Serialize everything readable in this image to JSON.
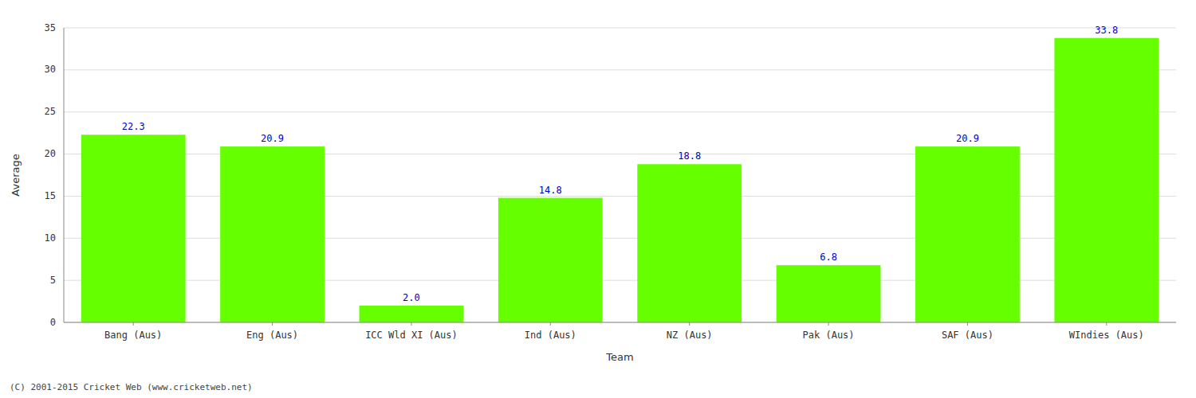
{
  "chart_data": {
    "type": "bar",
    "categories": [
      "Bang (Aus)",
      "Eng (Aus)",
      "ICC Wld XI (Aus)",
      "Ind (Aus)",
      "NZ (Aus)",
      "Pak (Aus)",
      "SAF (Aus)",
      "WIndies (Aus)"
    ],
    "values": [
      22.3,
      20.9,
      2.0,
      14.8,
      18.8,
      6.8,
      20.9,
      33.8
    ],
    "value_labels": [
      "22.3",
      "20.9",
      "2.0",
      "14.8",
      "18.8",
      "6.8",
      "20.9",
      "33.8"
    ],
    "color": "#66ff00",
    "xlabel": "Team",
    "ylabel": "Average",
    "ylim": [
      0,
      35
    ],
    "yticks": [
      0,
      5,
      10,
      15,
      20,
      25,
      30,
      35
    ],
    "grid": true,
    "data_labels": true,
    "annotations": [
      "(C) 2001-2015 Cricket Web (www.cricketweb.net)"
    ]
  }
}
